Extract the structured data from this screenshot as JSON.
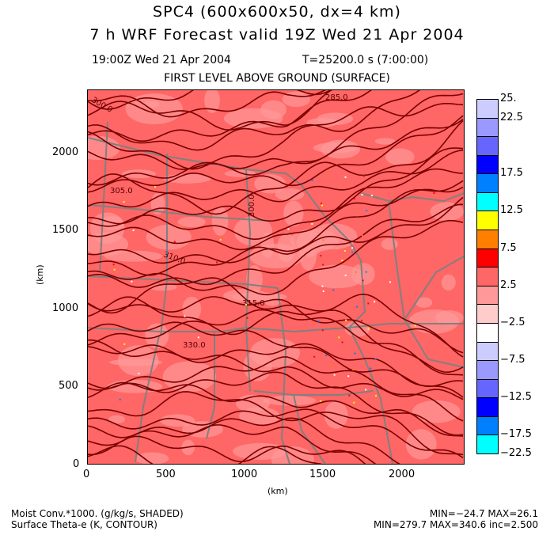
{
  "header": {
    "title": "SPC4 (600x600x50, dx=4 km)",
    "subtitle": "7 h WRF Forecast valid 19Z Wed 21 Apr 2004",
    "valid_time": "19:00Z Wed 21 Apr 2004",
    "model_time": "T=25200.0 s (7:00:00)",
    "level": "FIRST LEVEL ABOVE GROUND (SURFACE)"
  },
  "axes": {
    "x_label": "(km)",
    "y_label": "(km)",
    "x_ticks": [
      "0",
      "500",
      "1000",
      "1500",
      "2000"
    ],
    "y_ticks": [
      "0",
      "500",
      "1000",
      "1500",
      "2000"
    ],
    "x_range_km": [
      0,
      2400
    ],
    "y_range_km": [
      0,
      2400
    ]
  },
  "contour_labels": [
    "300.0",
    "305.0",
    "310.0",
    "315.0",
    "330.0",
    "300.0",
    "285.0"
  ],
  "colorbar": {
    "labels": [
      "25.",
      "22.5",
      "17.5",
      "12.5",
      "7.5",
      "2.5",
      "−2.5",
      "−7.5",
      "−12.5",
      "−17.5",
      "−22.5"
    ],
    "colors": [
      "#ccccff",
      "#9999ff",
      "#6666ff",
      "#0000ff",
      "#0080ff",
      "#00ffff",
      "#ffff00",
      "#ff8000",
      "#ff0000",
      "#ff6666",
      "#ff9999",
      "#ffcccc",
      "#ffffff",
      "#ccccff",
      "#9999ff",
      "#6666ff",
      "#0000ff",
      "#0080ff",
      "#00ffff"
    ]
  },
  "footer": {
    "field1": "Moist Conv.*1000. (g/kg/s, SHADED)",
    "field2": "Surface Theta-e (K, CONTOUR)",
    "stats1": "MIN=−24.7 MAX=26.1",
    "stats2": "MIN=279.7 MAX=340.6 inc=2.500"
  },
  "colors": {
    "field_base": "#ff6666",
    "field_light": "#ff9999",
    "contour": "#7a0000",
    "borders": "#808080"
  }
}
